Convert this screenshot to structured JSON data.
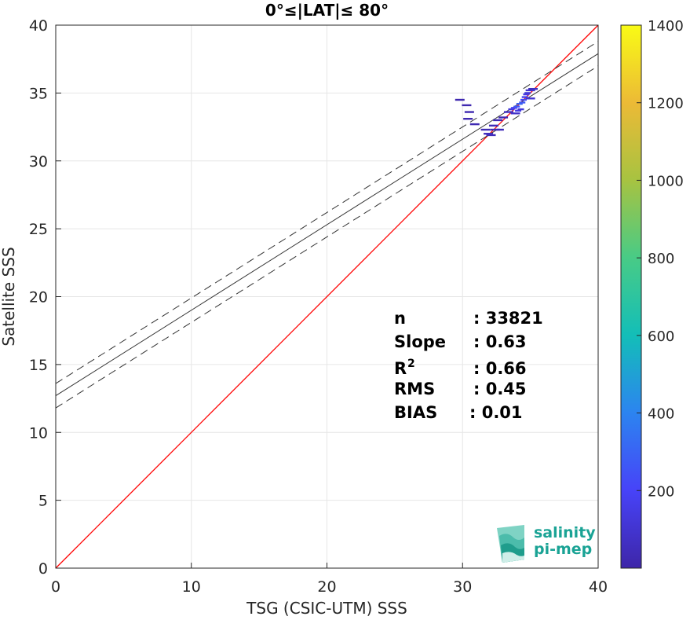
{
  "chart_data": {
    "type": "scatter",
    "title": "0°≤|LAT|≤ 80°",
    "xlabel": "TSG (CSIC-UTM) SSS",
    "ylabel": "Satellite SSS",
    "xlim": [
      0,
      40
    ],
    "ylim": [
      0,
      40
    ],
    "xticks": [
      "0",
      "10",
      "20",
      "30",
      "40"
    ],
    "yticks": [
      "0",
      "5",
      "10",
      "15",
      "20",
      "25",
      "30",
      "35",
      "40"
    ],
    "grid": true,
    "colorbar": {
      "range": [
        0,
        1400
      ],
      "ticks": [
        "200",
        "400",
        "600",
        "800",
        "1000",
        "1200",
        "1400"
      ],
      "colormap": [
        "#3e26a8",
        "#4743f8",
        "#2c84f0",
        "#13beb8",
        "#48cb86",
        "#a7c341",
        "#ecba36",
        "#f9fb15"
      ]
    },
    "density_points": [
      {
        "x": 29.8,
        "y": 34.5,
        "c": 20
      },
      {
        "x": 30.3,
        "y": 34.1,
        "c": 20
      },
      {
        "x": 30.5,
        "y": 33.6,
        "c": 20
      },
      {
        "x": 30.4,
        "y": 33.1,
        "c": 20
      },
      {
        "x": 30.9,
        "y": 32.7,
        "c": 25
      },
      {
        "x": 31.7,
        "y": 32.3,
        "c": 30
      },
      {
        "x": 31.9,
        "y": 32.0,
        "c": 60
      },
      {
        "x": 32.1,
        "y": 31.9,
        "c": 40
      },
      {
        "x": 32.4,
        "y": 32.3,
        "c": 40
      },
      {
        "x": 32.7,
        "y": 32.3,
        "c": 40
      },
      {
        "x": 32.3,
        "y": 32.6,
        "c": 40
      },
      {
        "x": 32.6,
        "y": 33.0,
        "c": 30
      },
      {
        "x": 33.0,
        "y": 33.2,
        "c": 30
      },
      {
        "x": 33.4,
        "y": 33.6,
        "c": 60
      },
      {
        "x": 33.6,
        "y": 33.8,
        "c": 120
      },
      {
        "x": 33.8,
        "y": 33.9,
        "c": 200
      },
      {
        "x": 34.0,
        "y": 34.0,
        "c": 260
      },
      {
        "x": 34.1,
        "y": 33.7,
        "c": 150
      },
      {
        "x": 34.2,
        "y": 34.2,
        "c": 300
      },
      {
        "x": 34.4,
        "y": 34.3,
        "c": 260
      },
      {
        "x": 34.5,
        "y": 34.5,
        "c": 220
      },
      {
        "x": 34.6,
        "y": 34.7,
        "c": 180
      },
      {
        "x": 34.7,
        "y": 34.9,
        "c": 150
      },
      {
        "x": 34.8,
        "y": 35.0,
        "c": 120
      },
      {
        "x": 35.0,
        "y": 35.2,
        "c": 90
      },
      {
        "x": 35.2,
        "y": 35.3,
        "c": 60
      },
      {
        "x": 35.0,
        "y": 34.6,
        "c": 100
      },
      {
        "x": 34.3,
        "y": 33.8,
        "c": 120
      },
      {
        "x": 33.9,
        "y": 33.5,
        "c": 80
      }
    ],
    "lines": [
      {
        "name": "one-to-one",
        "color": "#ff0000",
        "x": [
          0,
          40
        ],
        "y": [
          0,
          40
        ],
        "style": "solid"
      },
      {
        "name": "regression",
        "color": "#333333",
        "x": [
          0,
          40
        ],
        "y": [
          12.7,
          37.9
        ],
        "style": "solid"
      },
      {
        "name": "upper-bound",
        "color": "#333333",
        "x": [
          0,
          40
        ],
        "y": [
          13.6,
          38.8
        ],
        "style": "dashed"
      },
      {
        "name": "lower-bound",
        "color": "#333333",
        "x": [
          0,
          40
        ],
        "y": [
          11.8,
          37.0
        ],
        "style": "dashed"
      }
    ],
    "stats": [
      {
        "label": "n",
        "sup": "",
        "value": ": 33821"
      },
      {
        "label": "Slope",
        "sup": "",
        "value": ": 0.63"
      },
      {
        "label": "R",
        "sup": "2",
        "value": ": 0.66"
      },
      {
        "label": "RMS",
        "sup": "",
        "value": ": 0.45"
      },
      {
        "label": "BIAS",
        "sup": "",
        "value": ": 0.01"
      }
    ]
  },
  "logo": {
    "line1": "salinity",
    "line2": "pi-mep"
  }
}
